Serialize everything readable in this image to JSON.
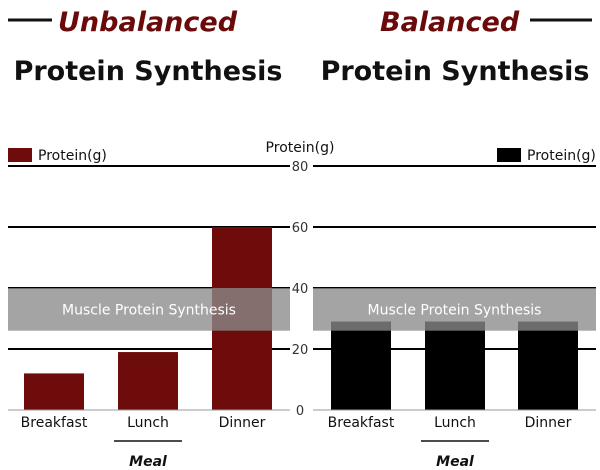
{
  "colors": {
    "unbalanced_accent": "#6b0a0a",
    "unbalanced_bar": "#6e0c0c",
    "balanced_bar": "#000000",
    "band": "#8a8a8a",
    "grid": "#000000",
    "text": "#111111"
  },
  "panels": [
    {
      "heading": "Unbalanced",
      "subheading": "Protein Synthesis"
    },
    {
      "heading": "Balanced",
      "subheading": "Protein Synthesis"
    }
  ],
  "chart_data": [
    {
      "type": "bar",
      "categories": [
        "Breakfast",
        "Lunch",
        "Dinner"
      ],
      "series": [
        {
          "name": "Protein(g)",
          "values": [
            12,
            19,
            60
          ],
          "color": "#6e0c0c"
        }
      ],
      "xlabel": "Meal",
      "ylabel": "Protein(g)",
      "ylim": [
        0,
        80
      ],
      "yticks": [
        0,
        20,
        40,
        60,
        80
      ],
      "grid": true,
      "legend": "top-left",
      "band": {
        "label": "Muscle Protein Synthesis",
        "from": 26,
        "to": 40
      }
    },
    {
      "type": "bar",
      "categories": [
        "Breakfast",
        "Lunch",
        "Dinner"
      ],
      "series": [
        {
          "name": "Protein(g)",
          "values": [
            29,
            29,
            29
          ],
          "color": "#000000"
        }
      ],
      "xlabel": "Meal",
      "ylabel": "Protein(g)",
      "ylim": [
        0,
        80
      ],
      "yticks": [
        0,
        20,
        40,
        60,
        80
      ],
      "grid": true,
      "legend": "top-right",
      "band": {
        "label": "Muscle Protein Synthesis",
        "from": 26,
        "to": 40
      }
    }
  ]
}
